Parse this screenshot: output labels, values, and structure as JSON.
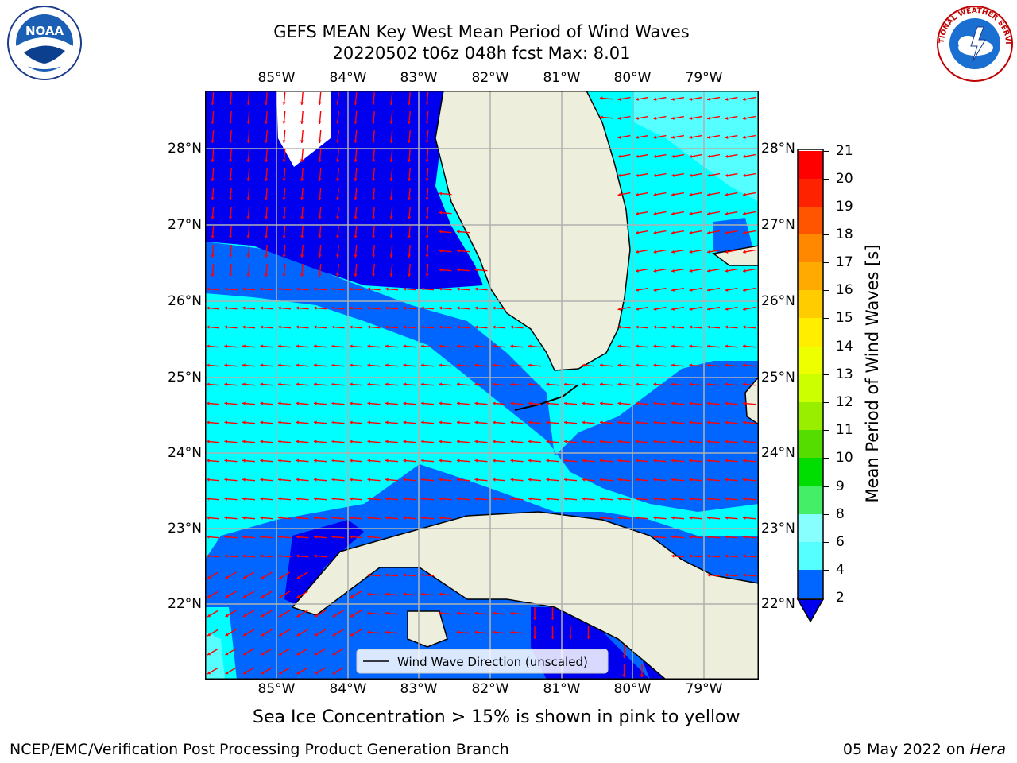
{
  "header": {
    "title_line1": "GEFS MEAN Key West Mean Period of Wind Waves",
    "title_line2": "20220502 t06z 048h fcst   Max: 8.01"
  },
  "logos": {
    "left": "NOAA",
    "right": "NATIONAL WEATHER SERVICE"
  },
  "map": {
    "lon_labels": [
      "85°W",
      "84°W",
      "83°W",
      "82°W",
      "81°W",
      "80°W",
      "79°W"
    ],
    "lat_labels": [
      "28°N",
      "27°N",
      "26°N",
      "25°N",
      "24°N",
      "23°N",
      "22°N"
    ],
    "legend_label": "Wind Wave Direction (unscaled)"
  },
  "colorbar": {
    "label": "Mean Period of Wind Waves [s]",
    "ticks": [
      "21",
      "20",
      "19",
      "18",
      "17",
      "16",
      "15",
      "14",
      "13",
      "12",
      "11",
      "10",
      "9",
      "8",
      "6",
      "4",
      "2"
    ]
  },
  "footer": {
    "note": "Sea Ice Concentration > 15% is shown in pink to yellow",
    "left": "NCEP/EMC/Verification Post Processing Product Generation Branch",
    "date": "05 May 2022 on ",
    "host": "Hera"
  },
  "colors": {
    "land": "#eeeedd",
    "c2_4": "#0066ff",
    "c4_6": "#00ffff",
    "c6_8": "#55ffff",
    "below2": "#0000ee",
    "arrow": "#ff0000"
  }
}
